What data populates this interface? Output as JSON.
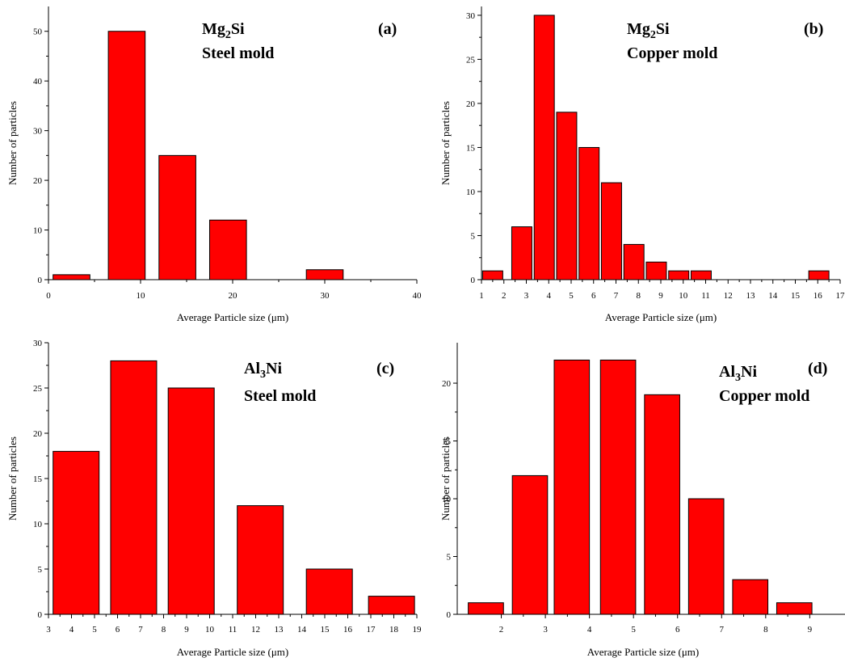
{
  "figure": {
    "bar_color": "#ff0000",
    "bar_stroke": "#000000",
    "axis_color": "#000000"
  },
  "chart_data": [
    {
      "id": "a",
      "type": "bar",
      "panel_label": "(a)",
      "annotation": {
        "line1_main": "Mg",
        "line1_sub": "2",
        "line1_rest": "Si",
        "line2": "Steel mold"
      },
      "xlabel": "Average Particle  size (μm)",
      "ylabel": "Number of particles",
      "xlim": [
        0,
        40
      ],
      "ylim": [
        0,
        55
      ],
      "x_ticks": [
        0,
        10,
        20,
        30,
        40
      ],
      "y_ticks": [
        0,
        10,
        20,
        30,
        40,
        50
      ],
      "bars": [
        {
          "x0": 0.5,
          "x1": 4.5,
          "value": 1
        },
        {
          "x0": 6.5,
          "x1": 10.5,
          "value": 50
        },
        {
          "x0": 12,
          "x1": 16,
          "value": 25
        },
        {
          "x0": 17.5,
          "x1": 21.5,
          "value": 12
        },
        {
          "x0": 28,
          "x1": 32,
          "value": 2
        }
      ],
      "grid": false,
      "legend": "none"
    },
    {
      "id": "b",
      "type": "bar",
      "panel_label": "(b)",
      "annotation": {
        "line1_main": "Mg",
        "line1_sub": "2",
        "line1_rest": "Si",
        "line2": "Copper mold"
      },
      "xlabel": "Average Particle  size (μm)",
      "ylabel": "Number of particles",
      "xlim": [
        1,
        17
      ],
      "ylim": [
        0,
        31
      ],
      "x_ticks": [
        1,
        2,
        3,
        4,
        5,
        6,
        7,
        8,
        9,
        10,
        11,
        12,
        13,
        14,
        15,
        16,
        17
      ],
      "y_ticks": [
        0,
        5,
        10,
        15,
        20,
        25,
        30
      ],
      "bars": [
        {
          "x0": 1.05,
          "x1": 1.95,
          "value": 1
        },
        {
          "x0": 2.35,
          "x1": 3.25,
          "value": 6
        },
        {
          "x0": 3.35,
          "x1": 4.25,
          "value": 30
        },
        {
          "x0": 4.35,
          "x1": 5.25,
          "value": 19
        },
        {
          "x0": 5.35,
          "x1": 6.25,
          "value": 15
        },
        {
          "x0": 6.35,
          "x1": 7.25,
          "value": 11
        },
        {
          "x0": 7.35,
          "x1": 8.25,
          "value": 4
        },
        {
          "x0": 8.35,
          "x1": 9.25,
          "value": 2
        },
        {
          "x0": 9.35,
          "x1": 10.25,
          "value": 1
        },
        {
          "x0": 10.35,
          "x1": 11.25,
          "value": 1
        },
        {
          "x0": 15.6,
          "x1": 16.5,
          "value": 1
        }
      ],
      "grid": false,
      "legend": "none"
    },
    {
      "id": "c",
      "type": "bar",
      "panel_label": "(c)",
      "annotation": {
        "line1_main": "Al",
        "line1_sub": "3",
        "line1_rest": "Ni",
        "line2": "Steel mold"
      },
      "xlabel": "Average Particle  size (μm)",
      "ylabel": "Number of particles",
      "xlim": [
        3,
        19
      ],
      "ylim": [
        0,
        30
      ],
      "x_ticks": [
        3,
        4,
        5,
        6,
        7,
        8,
        9,
        10,
        11,
        12,
        13,
        14,
        15,
        16,
        17,
        18,
        19
      ],
      "y_ticks": [
        0,
        5,
        10,
        15,
        20,
        25,
        30
      ],
      "bars": [
        {
          "x0": 3.2,
          "x1": 5.2,
          "value": 18
        },
        {
          "x0": 5.7,
          "x1": 7.7,
          "value": 28
        },
        {
          "x0": 8.2,
          "x1": 10.2,
          "value": 25
        },
        {
          "x0": 11.2,
          "x1": 13.2,
          "value": 12
        },
        {
          "x0": 14.2,
          "x1": 16.2,
          "value": 5
        },
        {
          "x0": 16.9,
          "x1": 18.9,
          "value": 2
        }
      ],
      "grid": false,
      "legend": "none"
    },
    {
      "id": "d",
      "type": "bar",
      "panel_label": "(d)",
      "annotation": {
        "line1_main": "Al",
        "line1_sub": "3",
        "line1_rest": "Ni",
        "line2": "Copper mold"
      },
      "xlabel": "Average Particle  size (μm)",
      "ylabel": "Number of particles",
      "xlim": [
        1,
        9.8
      ],
      "ylim": [
        0,
        23.5
      ],
      "x_ticks": [
        2,
        3,
        4,
        5,
        6,
        7,
        8,
        9
      ],
      "y_ticks": [
        0,
        5,
        10,
        15,
        20
      ],
      "bars": [
        {
          "x0": 1.25,
          "x1": 2.05,
          "value": 1
        },
        {
          "x0": 2.25,
          "x1": 3.05,
          "value": 12
        },
        {
          "x0": 3.2,
          "x1": 4.0,
          "value": 22
        },
        {
          "x0": 4.25,
          "x1": 5.05,
          "value": 22
        },
        {
          "x0": 5.25,
          "x1": 6.05,
          "value": 19
        },
        {
          "x0": 6.25,
          "x1": 7.05,
          "value": 10
        },
        {
          "x0": 7.25,
          "x1": 8.05,
          "value": 3
        },
        {
          "x0": 8.25,
          "x1": 9.05,
          "value": 1
        }
      ],
      "grid": false,
      "legend": "none"
    }
  ]
}
